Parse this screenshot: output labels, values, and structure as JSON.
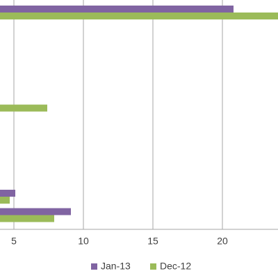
{
  "chart_data": {
    "type": "bar",
    "orientation": "horizontal",
    "categories": [
      null,
      null,
      null,
      null,
      null,
      null,
      null,
      null,
      null,
      null,
      null,
      null
    ],
    "series": [
      {
        "name": "Jan-13",
        "color": "#8064a2",
        "values": [
          20.8,
          null,
          null,
          null,
          null,
          null,
          null,
          null,
          null,
          null,
          5.1,
          9.1
        ]
      },
      {
        "name": "Dec-12",
        "color": "#9bbb59",
        "values": [
          24,
          null,
          null,
          null,
          null,
          7.4,
          null,
          null,
          null,
          null,
          4.7,
          7.9
        ]
      }
    ],
    "xlim": [
      4,
      24
    ],
    "xticks": [
      5,
      10,
      15,
      20
    ],
    "grid": true,
    "legend": "bottom"
  }
}
